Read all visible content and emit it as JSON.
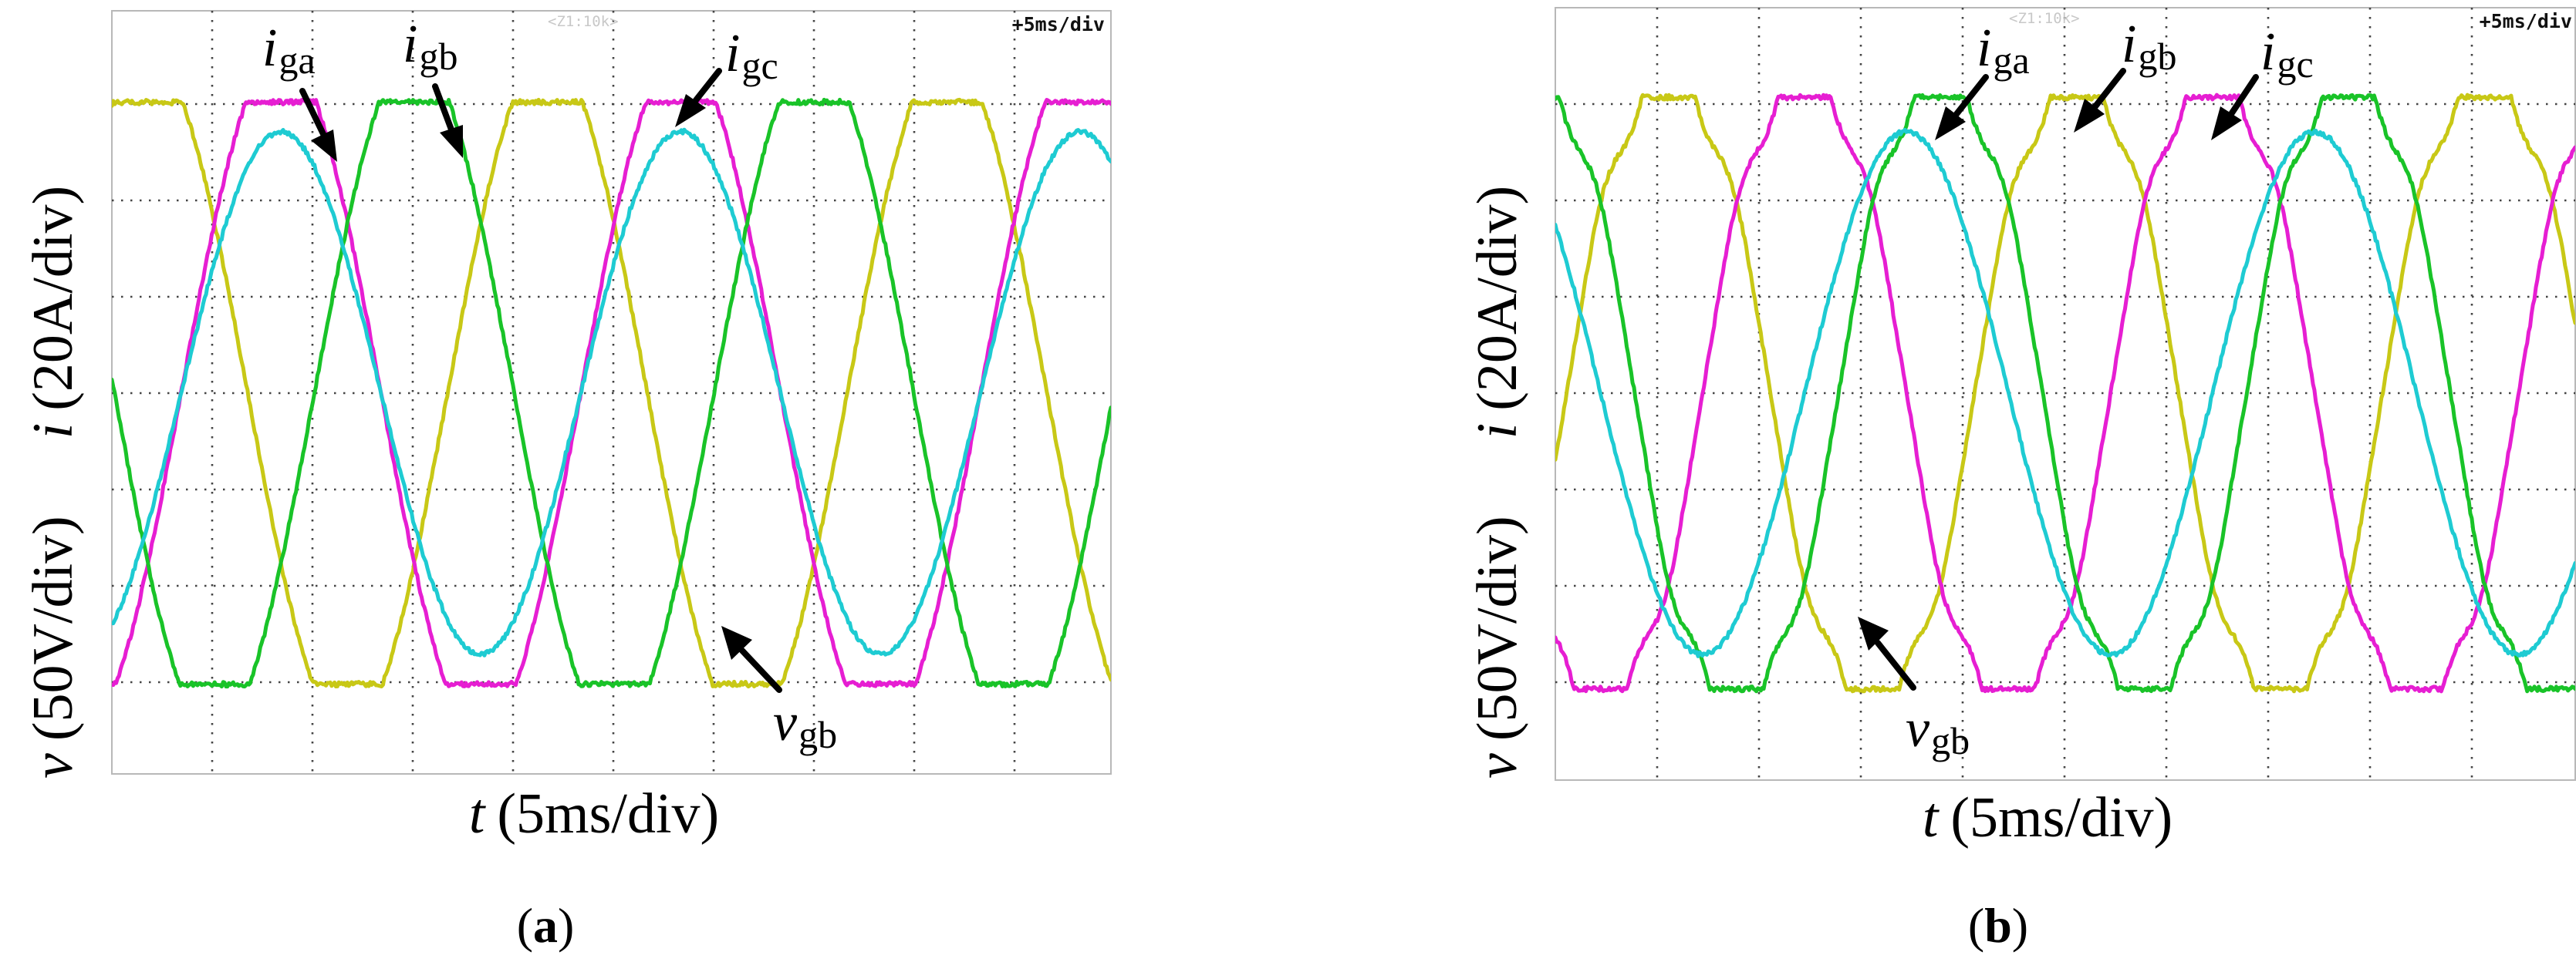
{
  "chart_data": [
    {
      "type": "line",
      "panel_label": "a",
      "top_marker": "<Z1:10k>",
      "timebase_label": "+5ms/div",
      "xlabel_var": "t",
      "xlabel_unit": "(5ms/div)",
      "ylabel_top_var": "i",
      "ylabel_top_unit": "(20A/div)",
      "ylabel_bottom_var": "v",
      "ylabel_bottom_unit": "(50V/div)",
      "xlim": [
        0,
        50
      ],
      "ylim": [
        -4,
        4
      ],
      "grid": true,
      "series": [
        {
          "name": "i_ga",
          "label_main": "i",
          "label_sub": "ga",
          "color": "#c8c816",
          "amplitude": 3,
          "phase_deg": 0,
          "clipped": true,
          "period_ms": 20
        },
        {
          "name": "i_gb",
          "label_main": "i",
          "label_sub": "gb",
          "color": "#e61ed2",
          "amplitude": 3,
          "phase_deg": -120,
          "clipped": true,
          "period_ms": 20
        },
        {
          "name": "i_gc",
          "label_main": "i",
          "label_sub": "gc",
          "color": "#19c328",
          "amplitude": 3,
          "phase_deg": 120,
          "clipped": true,
          "period_ms": 20
        },
        {
          "name": "v_gb",
          "label_main": "v",
          "label_sub": "gb",
          "color": "#1ecbd2",
          "amplitude": 2.3,
          "phase_deg": -120,
          "clipped": false,
          "period_ms": 20
        }
      ]
    },
    {
      "type": "line",
      "panel_label": "b",
      "top_marker": "<Z1:10k>",
      "timebase_label": "+5ms/div",
      "xlabel_var": "t",
      "xlabel_unit": "(5ms/div)",
      "ylabel_top_var": "i",
      "ylabel_top_unit": "(20A/div)",
      "ylabel_bottom_var": "v",
      "ylabel_bottom_unit": "(50V/div)",
      "xlim": [
        0,
        50
      ],
      "ylim": [
        -4,
        4
      ],
      "grid": true,
      "series": [
        {
          "name": "i_ga",
          "label_main": "i",
          "label_sub": "ga",
          "color": "#c8c816",
          "amplitude": 3.05,
          "phase_deg": -10,
          "clipped": true,
          "distorted": true,
          "period_ms": 20
        },
        {
          "name": "i_gb",
          "label_main": "i",
          "label_sub": "gb",
          "color": "#e61ed2",
          "amplitude": 3.05,
          "phase_deg": -130,
          "clipped": true,
          "distorted": true,
          "period_ms": 20
        },
        {
          "name": "i_gc",
          "label_main": "i",
          "label_sub": "gc",
          "color": "#19c328",
          "amplitude": 3.05,
          "phase_deg": 110,
          "clipped": true,
          "distorted": true,
          "period_ms": 20
        },
        {
          "name": "v_gb",
          "label_main": "v",
          "label_sub": "gb",
          "color": "#1ecbd2",
          "amplitude": 2.3,
          "phase_deg": -220,
          "clipped": false,
          "period_ms": 20
        }
      ]
    }
  ]
}
